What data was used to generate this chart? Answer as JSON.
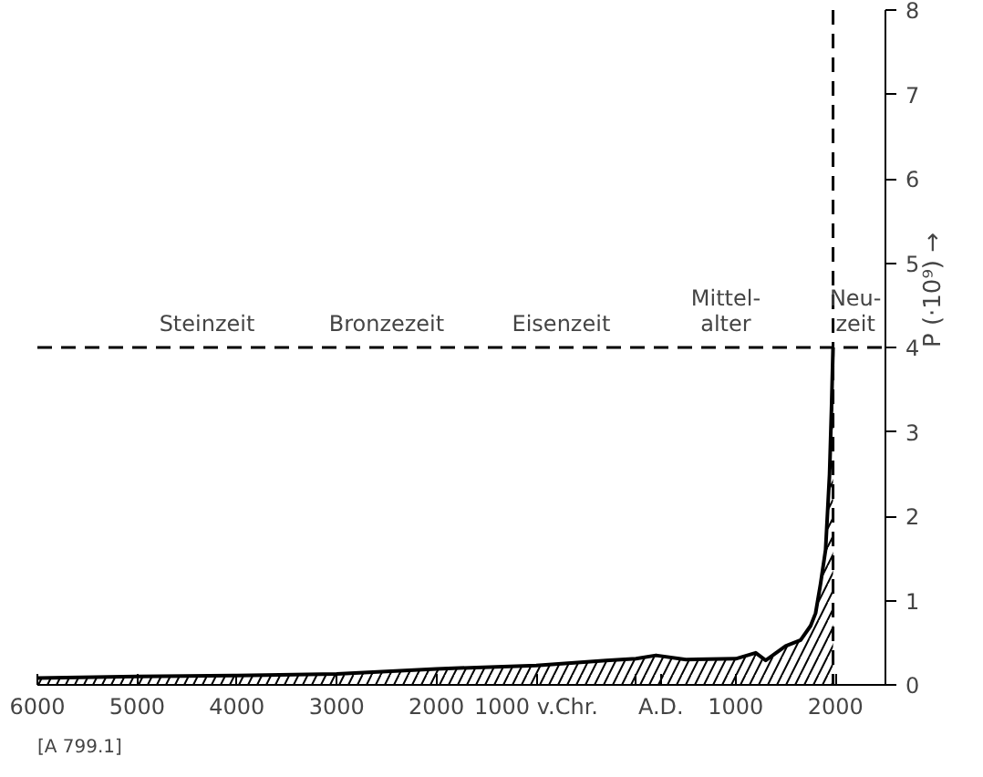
{
  "chart_data": {
    "type": "area",
    "ylabel": "P (·10⁹) →",
    "x": [
      -6000,
      -5000,
      -4000,
      -3000,
      -2000,
      -1000,
      -300,
      0,
      200,
      500,
      1000,
      1200,
      1300,
      1500,
      1650,
      1750,
      1800,
      1850,
      1900,
      1940,
      1960,
      1975
    ],
    "series": [
      {
        "color": "#000000",
        "values": [
          0.08,
          0.1,
          0.11,
          0.13,
          0.19,
          0.23,
          0.29,
          0.31,
          0.35,
          0.3,
          0.31,
          0.38,
          0.29,
          0.46,
          0.53,
          0.7,
          0.85,
          1.2,
          1.6,
          2.5,
          3.3,
          4.0
        ]
      }
    ],
    "xlim": [
      -6000,
      2500
    ],
    "ylim": [
      0,
      8
    ],
    "xticks": [
      {
        "value": -6000,
        "label": "6000"
      },
      {
        "value": -5000,
        "label": "5000"
      },
      {
        "value": -4000,
        "label": "4000"
      },
      {
        "value": -3000,
        "label": "3000"
      },
      {
        "value": -2000,
        "label": "2000"
      },
      {
        "value": -1000,
        "label": "1000 v.Chr."
      },
      {
        "value": 0,
        "label": null
      },
      {
        "value": 250,
        "label": "A.D."
      },
      1000,
      2000
    ],
    "yticks": [
      0,
      1,
      2,
      3,
      4,
      5,
      6,
      7,
      8
    ],
    "ref_lines": [
      {
        "axis": "y",
        "value": 4,
        "label": null,
        "line_style": "dashed"
      },
      {
        "axis": "x",
        "value": 1975,
        "label": null,
        "line_style": "dashed"
      }
    ],
    "annotations": [
      {
        "text": "Steinzeit",
        "x": -4300,
        "y": 4
      },
      {
        "text": "Bronzezeit",
        "x": -2500,
        "y": 4
      },
      {
        "text": "Eisenzeit",
        "x": -750,
        "y": 4
      },
      {
        "text": "Mittel-\nalter",
        "x": 900,
        "y": 4
      },
      {
        "text": "Neu-\nzeit",
        "x": 2200,
        "y": 4
      },
      "[A 799.1]"
    ],
    "grid": false
  }
}
